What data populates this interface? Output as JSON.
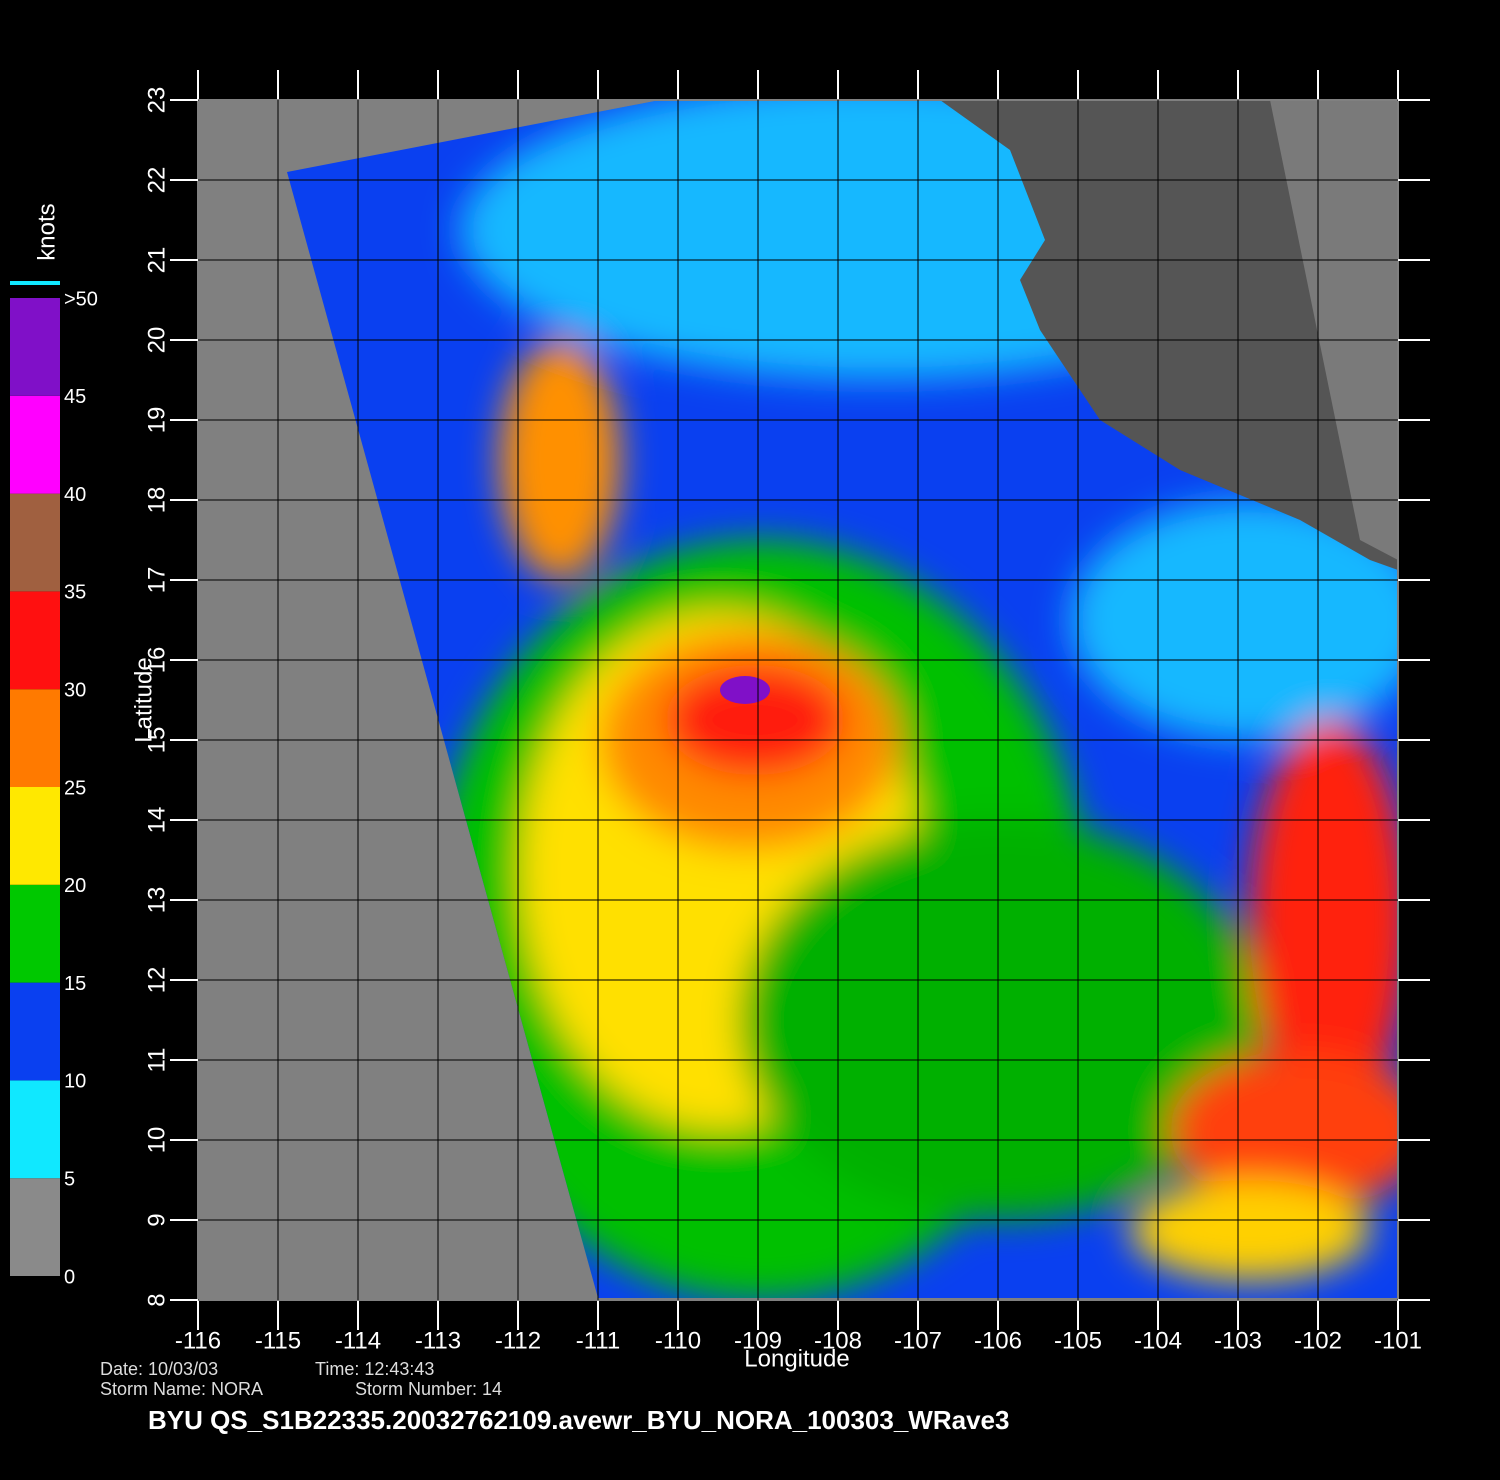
{
  "map": {
    "xlim": [
      -116,
      -101
    ],
    "ylim": [
      8,
      23
    ],
    "xticks": [
      -116,
      -115,
      -114,
      -113,
      -112,
      -111,
      -110,
      -109,
      -108,
      -107,
      -106,
      -105,
      -104,
      -103,
      -102,
      -101
    ],
    "yticks": [
      8,
      9,
      10,
      11,
      12,
      13,
      14,
      15,
      16,
      17,
      18,
      19,
      20,
      21,
      22,
      23
    ],
    "x_label": "Longitude",
    "y_label": "Latitude",
    "grid": true
  },
  "colorbar": {
    "title": "knots",
    "clim": [
      0,
      50
    ],
    "ticks": [
      0,
      5,
      10,
      15,
      20,
      25,
      30,
      35,
      40,
      45,
      {
        "value": 50,
        "label": ">50"
      }
    ],
    "band_colors": [
      "#8a8a8a",
      "#10e8ff",
      "#0a40f0",
      "#00c800",
      "#ffe800",
      "#ff7a00",
      "#ff1010",
      "#a06040",
      "#ff00ff",
      "#8010c8"
    ]
  },
  "info": {
    "date": "Date: 10/03/03",
    "time": "Time: 12:43:43",
    "storm_name": "Storm Name: NORA",
    "storm_number": "Storm Number: 14"
  },
  "title": "BYU QS_S1B22335.20032762109.avewr_BYU_NORA_100303_WRave3"
}
